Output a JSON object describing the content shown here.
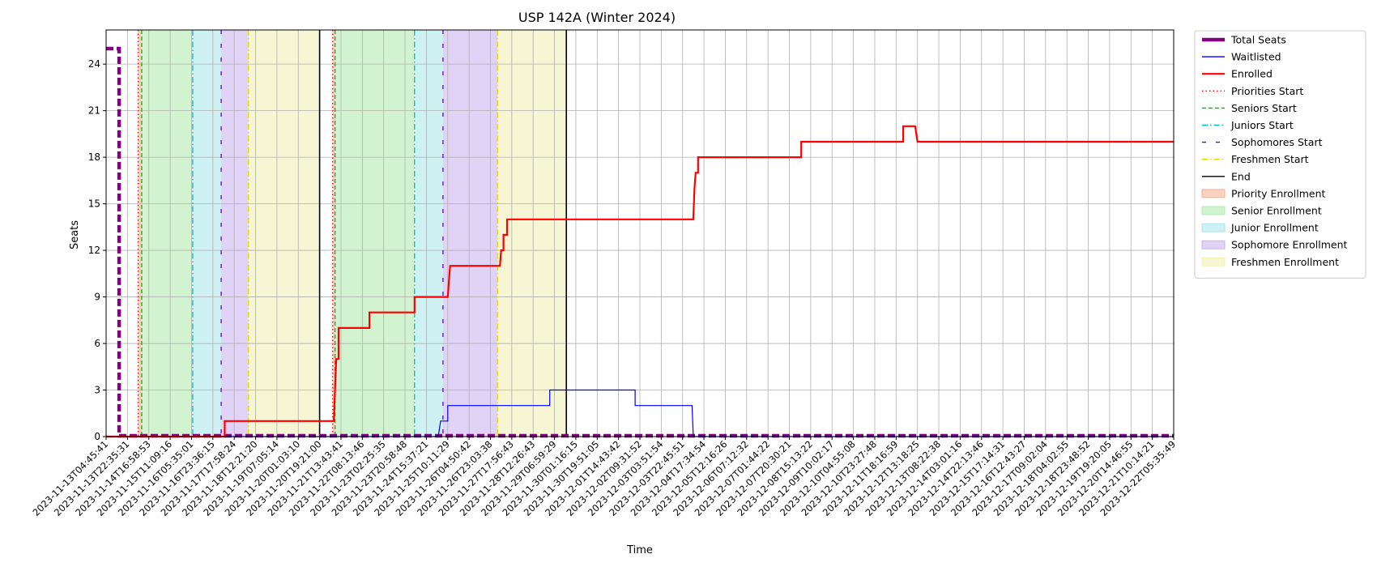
{
  "chart_data": {
    "type": "line",
    "title": "USP 142A (Winter 2024)",
    "xlabel": "Time",
    "ylabel": "Seats",
    "ylim": [
      0,
      26.2
    ],
    "yticks": [
      0,
      3,
      6,
      9,
      12,
      15,
      18,
      21,
      24
    ],
    "grid": true,
    "legend_position": "outside-right",
    "x_tick_labels": [
      "2023-11-13T04:45:41",
      "2023-11-13T22:35:31",
      "2023-11-14T16:58:53",
      "2023-11-15T11:09:16",
      "2023-11-16T05:35:01",
      "2023-11-16T23:36:15",
      "2023-11-17T17:58:24",
      "2023-11-18T12:21:20",
      "2023-11-19T07:05:14",
      "2023-11-20T01:03:10",
      "2023-11-20T19:21:00",
      "2023-11-21T13:43:41",
      "2023-11-22T08:13:46",
      "2023-11-23T02:25:35",
      "2023-11-23T20:58:48",
      "2023-11-24T15:37:21",
      "2023-11-25T10:11:29",
      "2023-11-26T04:50:42",
      "2023-11-26T23:03:38",
      "2023-11-27T17:56:43",
      "2023-11-28T12:26:43",
      "2023-11-29T06:59:29",
      "2023-11-30T01:16:15",
      "2023-11-30T19:51:05",
      "2023-12-01T14:43:42",
      "2023-12-02T09:31:52",
      "2023-12-03T03:51:54",
      "2023-12-03T22:45:51",
      "2023-12-04T17:34:54",
      "2023-12-05T12:16:26",
      "2023-12-06T07:12:32",
      "2023-12-07T01:44:22",
      "2023-12-07T20:30:21",
      "2023-12-08T15:13:22",
      "2023-12-09T10:02:17",
      "2023-12-10T04:55:08",
      "2023-12-10T23:27:48",
      "2023-12-11T18:16:59",
      "2023-12-12T13:18:25",
      "2023-12-13T08:22:38",
      "2023-12-14T03:01:16",
      "2023-12-14T22:13:46",
      "2023-12-15T17:14:31",
      "2023-12-16T12:43:27",
      "2023-12-17T09:02:04",
      "2023-12-18T04:02:55",
      "2023-12-18T23:48:52",
      "2023-12-19T19:20:05",
      "2023-12-20T14:46:55",
      "2023-12-21T10:14:21",
      "2023-12-22T05:35:49"
    ],
    "x_index_range": [
      0,
      45
    ],
    "series": [
      {
        "name": "Total Seats",
        "color": "#800080",
        "style": "dashed-thick",
        "points": [
          [
            0,
            25
          ],
          [
            0.55,
            25
          ],
          [
            0.55,
            0.05
          ],
          [
            45,
            0.05
          ]
        ]
      },
      {
        "name": "Waitlisted",
        "color": "#0000ff",
        "style": "solid-thin",
        "points": [
          [
            0,
            0
          ],
          [
            14,
            0
          ],
          [
            14.1,
            1
          ],
          [
            14.4,
            1
          ],
          [
            14.4,
            2
          ],
          [
            18.7,
            2
          ],
          [
            18.7,
            3
          ],
          [
            22.3,
            3
          ],
          [
            22.3,
            2
          ],
          [
            24.7,
            2
          ],
          [
            24.75,
            0
          ],
          [
            45,
            0
          ]
        ]
      },
      {
        "name": "Enrolled",
        "color": "#ff0000",
        "style": "solid-thick",
        "points": [
          [
            0,
            0
          ],
          [
            5.0,
            0
          ],
          [
            5.0,
            1
          ],
          [
            9.6,
            1
          ],
          [
            9.65,
            3
          ],
          [
            9.7,
            5
          ],
          [
            9.8,
            5
          ],
          [
            9.8,
            7
          ],
          [
            11.1,
            7
          ],
          [
            11.1,
            8
          ],
          [
            13.0,
            8
          ],
          [
            13.0,
            9
          ],
          [
            14.4,
            9
          ],
          [
            14.45,
            10
          ],
          [
            14.5,
            11
          ],
          [
            16.6,
            11
          ],
          [
            16.65,
            12
          ],
          [
            16.75,
            12
          ],
          [
            16.75,
            13
          ],
          [
            16.9,
            13
          ],
          [
            16.9,
            14
          ],
          [
            24.75,
            14
          ],
          [
            24.8,
            16
          ],
          [
            24.85,
            17
          ],
          [
            24.95,
            17
          ],
          [
            24.95,
            18
          ],
          [
            29.3,
            18
          ],
          [
            29.3,
            19
          ],
          [
            33.6,
            19
          ],
          [
            33.6,
            20
          ],
          [
            34.1,
            20
          ],
          [
            34.2,
            19
          ],
          [
            45,
            19
          ]
        ]
      }
    ],
    "vertical_markers": [
      {
        "name": "Priorities Start",
        "color": "#ff0000",
        "style": "dotted",
        "x": [
          1.35,
          9.55
        ]
      },
      {
        "name": "Seniors Start",
        "color": "#00bb00",
        "style": "dashed",
        "x": [
          1.5,
          9.65
        ]
      },
      {
        "name": "Juniors Start",
        "color": "#00bfbf",
        "style": "dashdot",
        "x": [
          3.65,
          13.0
        ]
      },
      {
        "name": "Sophomores Start",
        "color": "#6600cc",
        "style": "loose-dash",
        "x": [
          4.85,
          14.2
        ]
      },
      {
        "name": "Freshmen Start",
        "color": "#dddd00",
        "style": "dashdot",
        "x": [
          6.0,
          16.5
        ]
      },
      {
        "name": "End",
        "color": "#000000",
        "style": "solid",
        "x": [
          9.0,
          19.4
        ]
      }
    ],
    "shaded_periods": [
      {
        "name": "Priority Enrollment",
        "color": "#f4a582",
        "ranges": [
          [
            1.35,
            1.5
          ],
          [
            9.55,
            9.65
          ]
        ]
      },
      {
        "name": "Senior Enrollment",
        "color": "#a6e8a0",
        "ranges": [
          [
            1.5,
            3.65
          ],
          [
            9.65,
            13.0
          ]
        ]
      },
      {
        "name": "Junior Enrollment",
        "color": "#9ee3ea",
        "ranges": [
          [
            3.65,
            4.85
          ],
          [
            13.0,
            14.2
          ]
        ]
      },
      {
        "name": "Sophomore Enrollment",
        "color": "#c1a7ec",
        "ranges": [
          [
            4.85,
            6.0
          ],
          [
            14.2,
            16.5
          ]
        ]
      },
      {
        "name": "Freshmen Enrollment",
        "color": "#eeeeaa",
        "ranges": [
          [
            6.0,
            9.0
          ],
          [
            16.5,
            19.4
          ]
        ]
      }
    ],
    "legend": [
      {
        "label": "Total Seats",
        "kind": "line",
        "color": "#800080",
        "style": "thick"
      },
      {
        "label": "Waitlisted",
        "kind": "line",
        "color": "#0000ff",
        "style": "solid-thin"
      },
      {
        "label": "Enrolled",
        "kind": "line",
        "color": "#ff0000",
        "style": "solid-thick"
      },
      {
        "label": "Priorities Start",
        "kind": "line",
        "color": "#ff0000",
        "style": "dotted"
      },
      {
        "label": "Seniors Start",
        "kind": "line",
        "color": "#00bb00",
        "style": "dashed"
      },
      {
        "label": "Juniors Start",
        "kind": "line",
        "color": "#00bfbf",
        "style": "dashdot"
      },
      {
        "label": "Sophomores Start",
        "kind": "line",
        "color": "#6600cc",
        "style": "loose-dash"
      },
      {
        "label": "Freshmen Start",
        "kind": "line",
        "color": "#dddd00",
        "style": "dashdot"
      },
      {
        "label": "End",
        "kind": "line",
        "color": "#000000",
        "style": "solid"
      },
      {
        "label": "Priority Enrollment",
        "kind": "patch",
        "color": "#f4a582"
      },
      {
        "label": "Senior Enrollment",
        "kind": "patch",
        "color": "#a6e8a0"
      },
      {
        "label": "Junior Enrollment",
        "kind": "patch",
        "color": "#9ee3ea"
      },
      {
        "label": "Sophomore Enrollment",
        "kind": "patch",
        "color": "#c1a7ec"
      },
      {
        "label": "Freshmen Enrollment",
        "kind": "patch",
        "color": "#eeeeaa"
      }
    ]
  }
}
